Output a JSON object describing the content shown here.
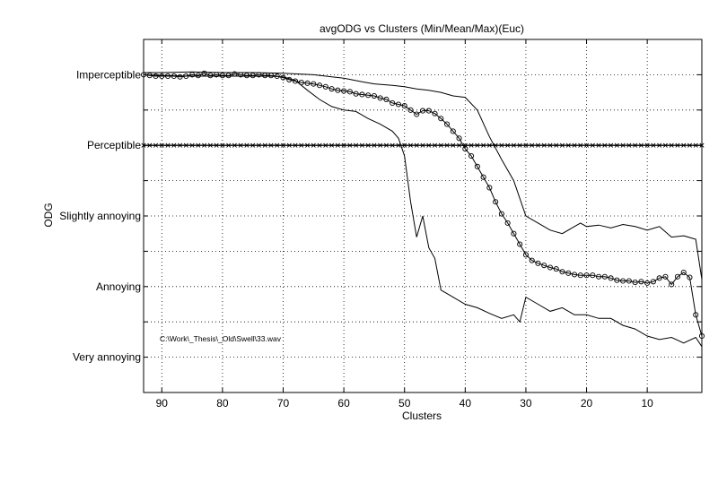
{
  "chart_data": {
    "type": "line",
    "title": "avgODG vs Clusters (Min/Mean/Max)(Euc)",
    "xlabel": "Clusters",
    "ylabel": "ODG",
    "xlim": [
      93,
      1
    ],
    "x_reversed": true,
    "x_ticks": [
      90,
      80,
      70,
      60,
      50,
      40,
      30,
      20,
      10
    ],
    "ylim": [
      -4.5,
      0.5
    ],
    "y_ticks": [
      {
        "value": 0,
        "label": "Imperceptible"
      },
      {
        "value": -1,
        "label": "Perceptible"
      },
      {
        "value": -2,
        "label": "Slightly annoying"
      },
      {
        "value": -3,
        "label": "Annoying"
      },
      {
        "value": -4,
        "label": "Very annoying"
      }
    ],
    "y_minor_grid": [
      0.5,
      -0.5,
      -1.5,
      -2.5,
      -3.5,
      -4.5
    ],
    "grid": true,
    "annotation": "C:\\Work\\_Thesis\\_Old\\Swell\\33.wav",
    "series": [
      {
        "role": "mean",
        "marker": "circle",
        "color": "#000000",
        "x": [
          93,
          92,
          91,
          90,
          89,
          88,
          87,
          86,
          85,
          84,
          83,
          82,
          81,
          80,
          79,
          78,
          77,
          76,
          75,
          74,
          73,
          72,
          71,
          70,
          69,
          68,
          67,
          66,
          65,
          64,
          63,
          62,
          61,
          60,
          59,
          58,
          57,
          56,
          55,
          54,
          53,
          52,
          51,
          50,
          49,
          48,
          47,
          46,
          45,
          44,
          43,
          42,
          41,
          40,
          39,
          38,
          37,
          36,
          35,
          34,
          33,
          32,
          31,
          30,
          29,
          28,
          27,
          26,
          25,
          24,
          23,
          22,
          21,
          20,
          19,
          18,
          17,
          16,
          15,
          14,
          13,
          12,
          11,
          10,
          9,
          8,
          7,
          6,
          5,
          4,
          3,
          2,
          1
        ],
        "y": [
          0,
          -0.01,
          -0.02,
          -0.02,
          -0.02,
          -0.02,
          -0.03,
          -0.02,
          0,
          -0.01,
          0.02,
          -0.01,
          0,
          -0.01,
          -0.01,
          0.01,
          0,
          -0.01,
          -0.01,
          0,
          -0.01,
          -0.01,
          -0.02,
          -0.04,
          -0.07,
          -0.09,
          -0.11,
          -0.12,
          -0.13,
          -0.15,
          -0.17,
          -0.2,
          -0.22,
          -0.23,
          -0.24,
          -0.27,
          -0.28,
          -0.29,
          -0.3,
          -0.33,
          -0.35,
          -0.4,
          -0.42,
          -0.44,
          -0.5,
          -0.56,
          -0.51,
          -0.51,
          -0.55,
          -0.62,
          -0.7,
          -0.8,
          -0.9,
          -1.05,
          -1.15,
          -1.3,
          -1.45,
          -1.6,
          -1.8,
          -1.97,
          -2.1,
          -2.25,
          -2.4,
          -2.55,
          -2.63,
          -2.67,
          -2.7,
          -2.73,
          -2.75,
          -2.79,
          -2.81,
          -2.83,
          -2.84,
          -2.84,
          -2.84,
          -2.86,
          -2.86,
          -2.88,
          -2.91,
          -2.92,
          -2.92,
          -2.94,
          -2.93,
          -2.95,
          -2.93,
          -2.88,
          -2.86,
          -2.97,
          -2.86,
          -2.8,
          -2.87,
          -3.4,
          -3.7
        ]
      },
      {
        "role": "max",
        "marker": "none",
        "color": "#000000",
        "x": [
          93,
          90,
          85,
          80,
          75,
          70,
          65,
          62,
          60,
          57,
          55,
          52,
          50,
          48,
          46,
          44,
          42,
          40,
          38,
          36,
          34,
          32,
          30,
          28,
          26,
          24,
          22,
          21,
          20,
          18,
          16,
          14,
          12,
          10,
          8,
          6,
          4,
          2,
          1
        ],
        "y": [
          0.03,
          0.03,
          0.04,
          0.03,
          0.03,
          0.02,
          0,
          -0.03,
          -0.05,
          -0.1,
          -0.13,
          -0.15,
          -0.17,
          -0.2,
          -0.22,
          -0.25,
          -0.3,
          -0.32,
          -0.5,
          -0.88,
          -1.2,
          -1.5,
          -2.0,
          -2.1,
          -2.2,
          -2.25,
          -2.15,
          -2.1,
          -2.15,
          -2.13,
          -2.17,
          -2.12,
          -2.15,
          -2.2,
          -2.15,
          -2.3,
          -2.28,
          -2.33,
          -2.9
        ]
      },
      {
        "role": "min",
        "marker": "none",
        "color": "#000000",
        "x": [
          93,
          90,
          85,
          80,
          75,
          72,
          70,
          68,
          66,
          64,
          62,
          60,
          58,
          56,
          54,
          52,
          51,
          50,
          49,
          48,
          47,
          46,
          45,
          44,
          42,
          40,
          38,
          36,
          34,
          32,
          31,
          30,
          28,
          26,
          24,
          22,
          20,
          18,
          16,
          14,
          12,
          10,
          8,
          6,
          4,
          2,
          1
        ],
        "y": [
          0,
          -0.01,
          -0.02,
          -0.02,
          -0.02,
          -0.02,
          -0.03,
          -0.08,
          -0.22,
          -0.35,
          -0.45,
          -0.5,
          -0.52,
          -0.62,
          -0.7,
          -0.8,
          -0.9,
          -1.15,
          -1.8,
          -2.3,
          -2.0,
          -2.45,
          -2.6,
          -3.05,
          -3.15,
          -3.25,
          -3.3,
          -3.38,
          -3.45,
          -3.4,
          -3.5,
          -3.15,
          -3.25,
          -3.35,
          -3.3,
          -3.4,
          -3.4,
          -3.45,
          -3.45,
          -3.55,
          -3.6,
          -3.7,
          -3.75,
          -3.72,
          -3.8,
          -3.72,
          -3.85
        ]
      },
      {
        "role": "perceptible-threshold",
        "marker": "x",
        "color": "#000000",
        "x": [
          93,
          1
        ],
        "y": [
          -1,
          -1
        ]
      }
    ]
  }
}
